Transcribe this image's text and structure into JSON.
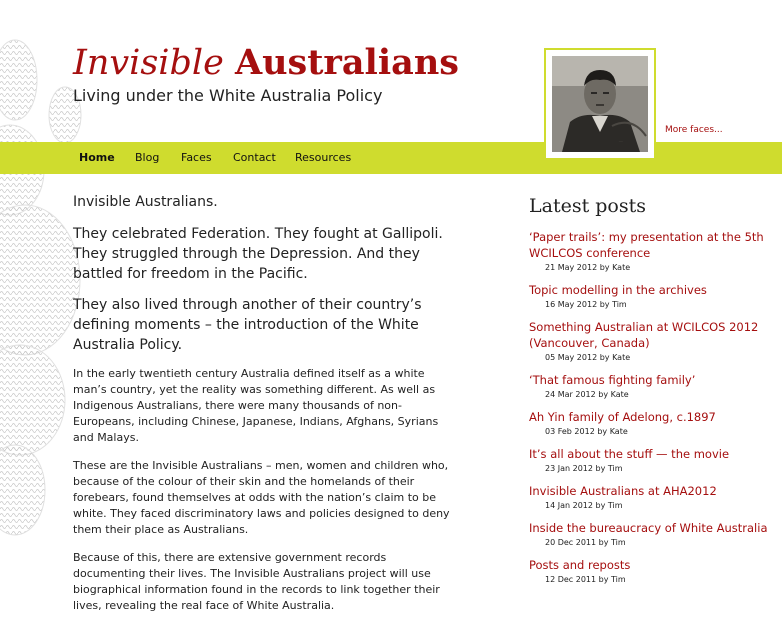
{
  "header": {
    "title_part1": "Invisible",
    "title_part2": "Australians",
    "tagline": "Living under the White Australia Policy"
  },
  "nav": {
    "items": [
      {
        "label": "Home"
      },
      {
        "label": "Blog"
      },
      {
        "label": "Faces"
      },
      {
        "label": "Contact"
      },
      {
        "label": "Resources"
      }
    ]
  },
  "faces": {
    "more_link": "More faces..."
  },
  "main": {
    "intro": "Invisible Australians.",
    "lead1": "They celebrated Federation. They fought at Gallipoli. They struggled through the Depression. And they battled for freedom in the Pacific.",
    "lead2": "They also lived through another of their country’s defining moments – the introduction of the White Australia Policy.",
    "para1": "In the early twentieth century Australia defined itself as a white man’s country, yet the reality was something different. As well as Indigenous Australians, there were many thousands of non-Europeans, including Chinese, Japanese, Indians, Afghans, Syrians and Malays.",
    "para2": "These are the Invisible Australians – men, women and children who, because of the colour of their skin and the homelands of their forebears, found themselves at odds with the nation’s claim to be white. They faced discriminatory laws and policies designed to deny them their place as Australians.",
    "para3": "Because of this, there are extensive government records documenting their lives. The Invisible Australians project will use biographical information found in the records to link together their lives, revealing the real face of White Australia."
  },
  "sidebar": {
    "title": "Latest posts",
    "posts": [
      {
        "title": "‘Paper trails’: my presentation at the 5th WCILCOS conference",
        "meta": "21 May 2012 by Kate"
      },
      {
        "title": "Topic modelling in the archives",
        "meta": "16 May 2012 by Tim"
      },
      {
        "title": "Something Australian at WCILCOS 2012 (Vancouver, Canada)",
        "meta": "05 May 2012 by Kate"
      },
      {
        "title": "‘That famous fighting family’",
        "meta": "24 Mar 2012 by Kate"
      },
      {
        "title": "Ah Yin family of Adelong, c.1897",
        "meta": "03 Feb 2012 by Kate"
      },
      {
        "title": "It’s all about the stuff — the movie",
        "meta": "23 Jan 2012 by Tim"
      },
      {
        "title": "Invisible Australians at AHA2012",
        "meta": "14 Jan 2012 by Tim"
      },
      {
        "title": "Inside the bureaucracy of White Australia",
        "meta": "20 Dec 2011 by Tim"
      },
      {
        "title": "Posts and reposts",
        "meta": "12 Dec 2011 by Tim"
      }
    ]
  },
  "colors": {
    "accent": "#a50f0f",
    "nav_bg": "#cfdc2e"
  }
}
